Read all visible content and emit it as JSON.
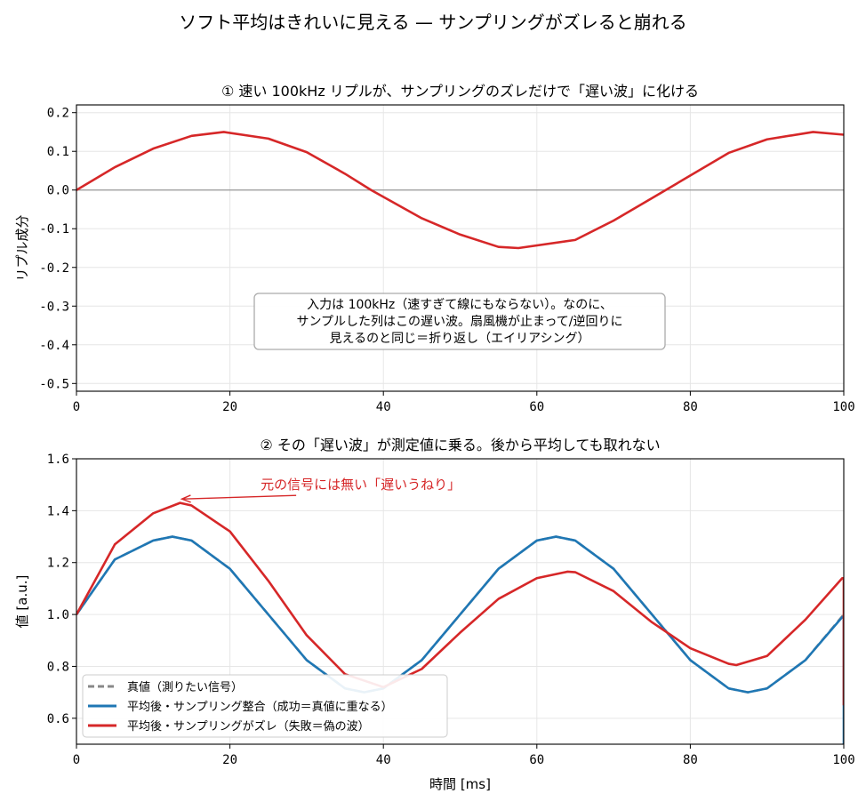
{
  "figure": {
    "suptitle": "ソフト平均はきれいに見える — サンプリングがズレると崩れる"
  },
  "chart_data": [
    {
      "type": "line",
      "title": "① 速い 100kHz リプルが、サンプリングのズレだけで「遅い波」に化ける",
      "xlabel": "",
      "ylabel": "リプル成分",
      "xlim": [
        0,
        100
      ],
      "ylim": [
        -0.52,
        0.22
      ],
      "xticks": [
        "0",
        "20",
        "40",
        "60",
        "80",
        "100"
      ],
      "xtick_values": [
        0,
        20,
        40,
        60,
        80,
        100
      ],
      "yticks": [
        "0.2",
        "0.1",
        "0.0",
        "-0.1",
        "-0.2",
        "-0.3",
        "-0.4",
        "-0.5"
      ],
      "ytick_values": [
        0.2,
        0.1,
        0.0,
        -0.1,
        -0.2,
        -0.3,
        -0.4,
        -0.5
      ],
      "grid": true,
      "zero_line": 0,
      "series": [
        {
          "color": "#d62728",
          "x": [
            0,
            5,
            10,
            15,
            19.2,
            25,
            30,
            35,
            38.4,
            45,
            50,
            55,
            57.6,
            65,
            70,
            75,
            76.8,
            85,
            90,
            96,
            100
          ],
          "y": [
            0.0,
            0.059,
            0.107,
            0.14,
            0.15,
            0.133,
            0.098,
            0.042,
            0.0,
            -0.073,
            -0.115,
            -0.147,
            -0.15,
            -0.129,
            -0.079,
            -0.021,
            0.0,
            0.096,
            0.131,
            0.15,
            0.143
          ]
        }
      ],
      "annotation": {
        "lines": [
          "入力は 100kHz（速すぎて線にもならない）。なのに、",
          "サンプルした列はこの遅い波。扇風機が止まって/逆回りに",
          "見えるのと同じ＝折り返し（エイリアシング）"
        ]
      }
    },
    {
      "type": "line",
      "title": "② その「遅い波」が測定値に乗る。後から平均しても取れない",
      "xlabel": "時間 [ms]",
      "ylabel": "値 [a.u.]",
      "xlim": [
        0,
        100
      ],
      "ylim": [
        0.5,
        1.6
      ],
      "xticks": [
        "0",
        "20",
        "40",
        "60",
        "80",
        "100"
      ],
      "xtick_values": [
        0,
        20,
        40,
        60,
        80,
        100
      ],
      "yticks": [
        "1.6",
        "1.4",
        "1.2",
        "1.0",
        "0.8",
        "0.6"
      ],
      "ytick_values": [
        1.6,
        1.4,
        1.2,
        1.0,
        0.8,
        0.6
      ],
      "grid": true,
      "series": [
        {
          "name": "真値（測りたい信号）",
          "color": "#888888",
          "style": "dashed",
          "x": [
            0,
            5,
            10,
            12.5,
            15,
            20,
            25,
            30,
            35,
            37.5,
            40,
            45,
            50,
            55,
            60,
            62.5,
            65,
            70,
            75,
            80,
            85,
            87.5,
            90,
            95,
            100
          ],
          "y": [
            1.0,
            1.212,
            1.285,
            1.3,
            1.285,
            1.176,
            1.0,
            0.824,
            0.715,
            0.7,
            0.715,
            0.824,
            1.0,
            1.176,
            1.285,
            1.3,
            1.285,
            1.176,
            1.0,
            0.824,
            0.715,
            0.7,
            0.715,
            0.824,
            1.0
          ]
        },
        {
          "name": "平均後・サンプリング整合（成功＝真値に重なる）",
          "color": "#1f77b4",
          "style": "solid",
          "x": [
            0,
            5,
            10,
            12.5,
            15,
            20,
            25,
            30,
            35,
            37.5,
            40,
            45,
            50,
            55,
            60,
            62.5,
            65,
            70,
            75,
            80,
            85,
            87.5,
            90,
            95,
            99.8,
            100,
            100
          ],
          "y": [
            1.0,
            1.212,
            1.285,
            1.3,
            1.285,
            1.176,
            1.0,
            0.824,
            0.715,
            0.7,
            0.715,
            0.824,
            1.0,
            1.176,
            1.285,
            1.3,
            1.285,
            1.176,
            1.0,
            0.824,
            0.715,
            0.7,
            0.715,
            0.824,
            0.99,
            0.99,
            0.5
          ]
        },
        {
          "name": "平均後・サンプリングがズレ（失敗＝偽の波）",
          "color": "#d62728",
          "style": "solid",
          "x": [
            0,
            5,
            10,
            13.5,
            15,
            20,
            25,
            30,
            35,
            40,
            45,
            50,
            55,
            60,
            64,
            65,
            70,
            75,
            80,
            85,
            86,
            90,
            95,
            99.8,
            100,
            100
          ],
          "y": [
            1.0,
            1.27,
            1.39,
            1.43,
            1.42,
            1.32,
            1.13,
            0.92,
            0.77,
            0.72,
            0.79,
            0.93,
            1.06,
            1.14,
            1.165,
            1.163,
            1.09,
            0.97,
            0.87,
            0.81,
            0.805,
            0.84,
            0.98,
            1.14,
            1.14,
            0.65
          ]
        }
      ],
      "legend": {
        "placement": "lower-left"
      },
      "annotation": {
        "text": "元の信号には無い「遅いうねり」",
        "color": "#d62728",
        "arrow_to": [
          13.5,
          1.445
        ],
        "text_at": [
          24,
          1.5
        ]
      }
    }
  ]
}
